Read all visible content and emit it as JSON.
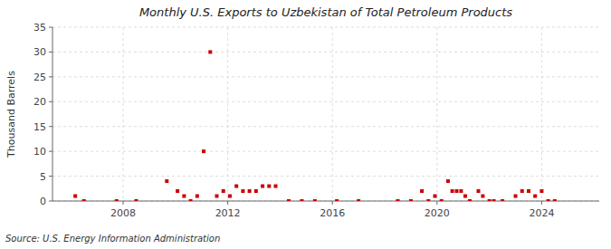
{
  "chart_data": {
    "type": "scatter",
    "title": "Monthly U.S. Exports to Uzbekistan of Total Petroleum Products",
    "ylabel": "Thousand Barrels",
    "source": "Source: U.S. Energy Information Administration",
    "color": "#CC0000",
    "marker": "square",
    "grid": true,
    "xlim": [
      2005.3,
      2026.2
    ],
    "xticks": [
      2008,
      2012,
      2016,
      2020,
      2024
    ],
    "ylim": [
      0,
      35
    ],
    "yticks": [
      0,
      5,
      10,
      15,
      20,
      25,
      30,
      35
    ],
    "x": [
      2006.17,
      2006.5,
      2007.75,
      2008.5,
      2009.67,
      2010.08,
      2010.33,
      2010.58,
      2010.83,
      2011.08,
      2011.33,
      2011.58,
      2011.83,
      2012.08,
      2012.33,
      2012.58,
      2012.83,
      2013.08,
      2013.33,
      2013.58,
      2013.83,
      2014.33,
      2014.83,
      2015.33,
      2016.17,
      2017.0,
      2018.5,
      2019.0,
      2019.42,
      2019.67,
      2019.92,
      2020.17,
      2020.42,
      2020.58,
      2020.75,
      2020.92,
      2021.08,
      2021.25,
      2021.58,
      2021.75,
      2022.0,
      2022.17,
      2022.5,
      2023.0,
      2023.25,
      2023.5,
      2023.75,
      2024.0,
      2024.25,
      2024.5
    ],
    "values": [
      1,
      0,
      0,
      0,
      4,
      2,
      1,
      0,
      1,
      10,
      30,
      1,
      2,
      1,
      3,
      2,
      2,
      2,
      3,
      3,
      3,
      0,
      0,
      0,
      0,
      0,
      0,
      0,
      2,
      0,
      1,
      0,
      4,
      2,
      2,
      2,
      1,
      0,
      2,
      1,
      0,
      0,
      0,
      1,
      2,
      2,
      1,
      2,
      0,
      0
    ]
  }
}
